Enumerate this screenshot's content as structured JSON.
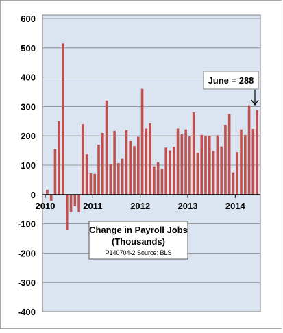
{
  "chart_data": {
    "type": "bar",
    "title": "Change in Payroll Jobs",
    "subtitle": "(Thousands)",
    "source_note": "P140704-2 Source: BLS",
    "annotation": "June = 288",
    "xlabel": "",
    "ylabel": "",
    "ylim": [
      -400,
      600
    ],
    "yticks": [
      -400,
      -300,
      -200,
      -100,
      0,
      100,
      200,
      300,
      400,
      500,
      600
    ],
    "ytick_labels": [
      "-400",
      "-300",
      "-200",
      "-100",
      "0",
      "100",
      "200",
      "300",
      "400",
      "500",
      "600"
    ],
    "year_labels": [
      "2010",
      "2011",
      "2012",
      "2013",
      "2014"
    ],
    "grid": "horizontal",
    "colors": {
      "bar": "#c0504d",
      "plot_background": "#dbe5f1",
      "frame": "#7f7f7f",
      "grid": "#7f7f7f",
      "text": "#000000"
    },
    "categories": [
      "Jan 2010",
      "Feb 2010",
      "Mar 2010",
      "Apr 2010",
      "May 2010",
      "Jun 2010",
      "Jul 2010",
      "Aug 2010",
      "Sep 2010",
      "Oct 2010",
      "Nov 2010",
      "Dec 2010",
      "Jan 2011",
      "Feb 2011",
      "Mar 2011",
      "Apr 2011",
      "May 2011",
      "Jun 2011",
      "Jul 2011",
      "Aug 2011",
      "Sep 2011",
      "Oct 2011",
      "Nov 2011",
      "Dec 2011",
      "Jan 2012",
      "Feb 2012",
      "Mar 2012",
      "Apr 2012",
      "May 2012",
      "Jun 2012",
      "Jul 2012",
      "Aug 2012",
      "Sep 2012",
      "Oct 2012",
      "Nov 2012",
      "Dec 2012",
      "Jan 2013",
      "Feb 2013",
      "Mar 2013",
      "Apr 2013",
      "May 2013",
      "Jun 2013",
      "Jul 2013",
      "Aug 2013",
      "Sep 2013",
      "Oct 2013",
      "Nov 2013",
      "Dec 2013",
      "Jan 2014",
      "Feb 2014",
      "Mar 2014",
      "Apr 2014",
      "May 2014",
      "Jun 2014"
    ],
    "values": [
      16,
      -22,
      155,
      250,
      515,
      -122,
      -60,
      -40,
      -60,
      240,
      137,
      72,
      70,
      170,
      210,
      320,
      102,
      217,
      107,
      122,
      220,
      182,
      165,
      197,
      360,
      225,
      243,
      96,
      110,
      88,
      160,
      150,
      163,
      225,
      205,
      222,
      198,
      280,
      142,
      203,
      200,
      200,
      148,
      202,
      164,
      237,
      274,
      75,
      144,
      222,
      203,
      304,
      224,
      288
    ]
  }
}
